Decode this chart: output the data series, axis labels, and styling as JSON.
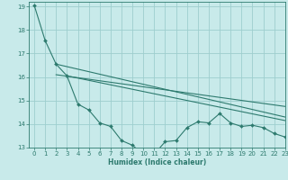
{
  "background_color": "#c8eaea",
  "grid_color": "#9ecece",
  "line_color": "#2d7a6e",
  "xlabel": "Humidex (Indice chaleur)",
  "xlim": [
    -0.5,
    23
  ],
  "ylim": [
    13,
    19.2
  ],
  "yticks": [
    13,
    14,
    15,
    16,
    17,
    18,
    19
  ],
  "xticks": [
    0,
    1,
    2,
    3,
    4,
    5,
    6,
    7,
    8,
    9,
    10,
    11,
    12,
    13,
    14,
    15,
    16,
    17,
    18,
    19,
    20,
    21,
    22,
    23
  ],
  "line1_x": [
    0,
    1,
    2,
    3,
    4,
    5,
    6,
    7,
    8,
    9,
    10,
    11,
    12,
    13,
    14,
    15,
    16,
    17,
    18,
    19,
    20,
    21,
    22,
    23
  ],
  "line1_y": [
    19.05,
    17.55,
    16.55,
    16.05,
    14.85,
    14.6,
    14.05,
    13.9,
    13.3,
    13.1,
    12.72,
    12.72,
    13.25,
    13.3,
    13.85,
    14.1,
    14.05,
    14.45,
    14.05,
    13.9,
    13.95,
    13.85,
    13.6,
    13.45
  ],
  "line2_x": [
    2,
    23
  ],
  "line2_y": [
    16.55,
    14.3
  ],
  "line3_x": [
    3,
    23
  ],
  "line3_y": [
    16.05,
    14.15
  ],
  "line4_x": [
    2,
    23
  ],
  "line4_y": [
    16.1,
    14.75
  ]
}
